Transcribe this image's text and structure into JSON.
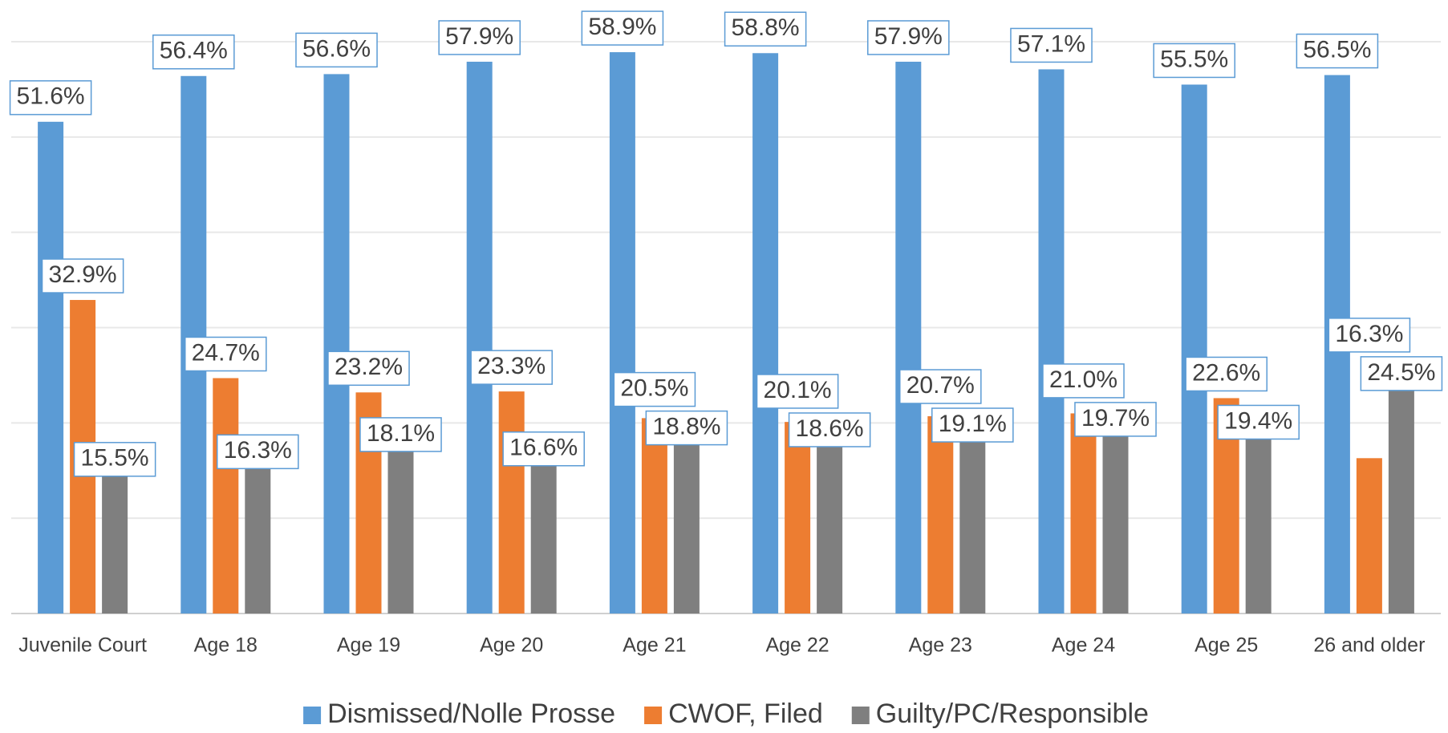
{
  "chart_data": {
    "type": "bar",
    "categories": [
      "Juvenile Court",
      "Age 18",
      "Age 19",
      "Age 20",
      "Age 21",
      "Age 22",
      "Age 23",
      "Age 24",
      "Age 25",
      "26 and older"
    ],
    "series": [
      {
        "name": "Dismissed/Nolle Prosse",
        "color": "#5b9bd5",
        "values": [
          51.6,
          56.4,
          56.6,
          57.9,
          58.9,
          58.8,
          57.9,
          57.1,
          55.5,
          56.5
        ],
        "value_labels": [
          "51.6%",
          "56.4%",
          "56.6%",
          "57.9%",
          "58.9%",
          "58.8%",
          "57.9%",
          "57.1%",
          "55.5%",
          "56.5%"
        ]
      },
      {
        "name": "CWOF, Filed",
        "color": "#ed7d31",
        "values": [
          32.9,
          24.7,
          23.2,
          23.3,
          20.5,
          20.1,
          20.7,
          21.0,
          22.6,
          16.3
        ],
        "value_labels": [
          "32.9%",
          "24.7%",
          "23.2%",
          "23.3%",
          "20.5%",
          "20.1%",
          "20.7%",
          "21.0%",
          "22.6%",
          "16.3%"
        ]
      },
      {
        "name": "Guilty/PC/Responsible",
        "color": "#7f7f7f",
        "values": [
          15.5,
          16.3,
          18.1,
          16.6,
          18.8,
          18.6,
          19.1,
          19.7,
          19.4,
          24.5
        ],
        "value_labels": [
          "15.5%",
          "16.3%",
          "18.1%",
          "16.6%",
          "18.8%",
          "18.6%",
          "19.1%",
          "19.7%",
          "19.4%",
          "24.5%"
        ]
      }
    ],
    "ylim": [
      0,
      60
    ],
    "yticks": [
      0,
      10,
      20,
      30,
      40,
      50,
      60
    ],
    "grid": true,
    "legend": "bottom"
  }
}
